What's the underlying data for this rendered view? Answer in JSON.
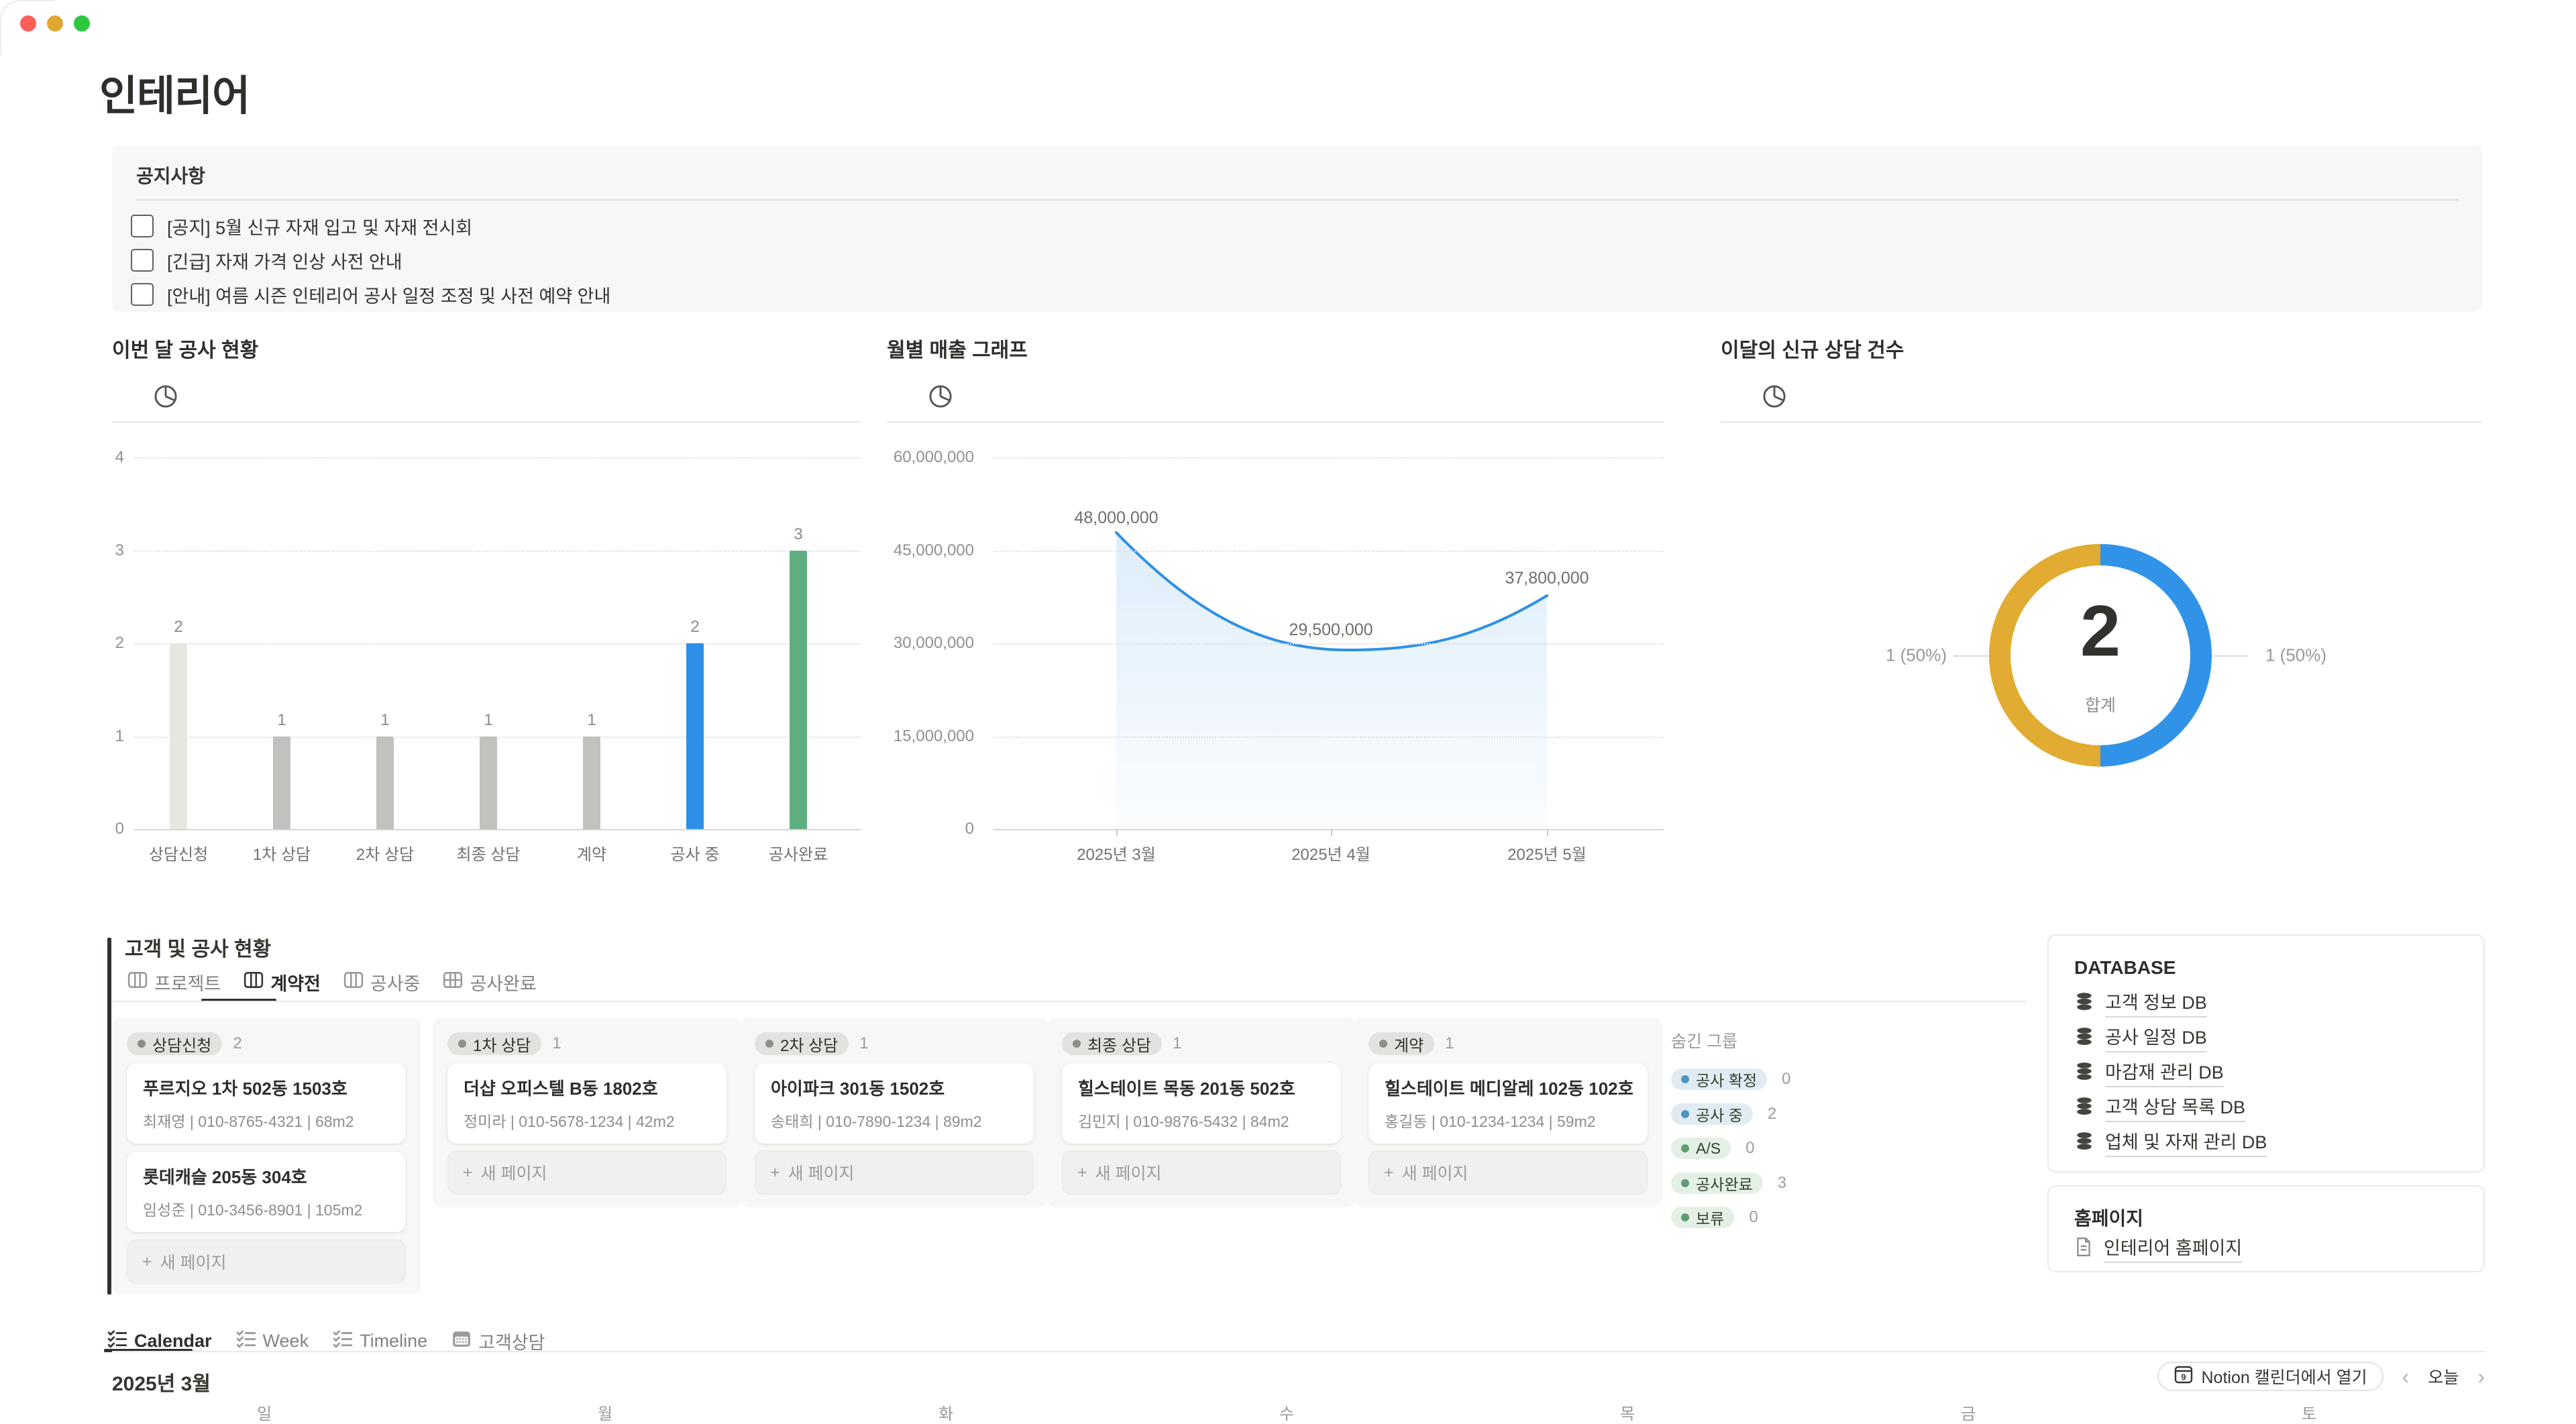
{
  "window": {
    "controls": [
      {
        "name": "close",
        "color": "#fb5f57"
      },
      {
        "name": "minimize",
        "color": "#e0a831"
      },
      {
        "name": "zoom",
        "color": "#2bc840"
      }
    ]
  },
  "page": {
    "title": "인테리어"
  },
  "notice": {
    "title": "공지사항",
    "items": [
      "[공지] 5월 신규 자재 입고 및 자재 전시회",
      "[긴급] 자재 가격 인상 사전 안내",
      "[안내] 여름 시즌 인테리어 공사 일정 조정 및 사전 예약 안내"
    ]
  },
  "chart_data": [
    {
      "type": "bar",
      "title": "이번 달 공사 현황",
      "categories": [
        "상담신청",
        "1차 상담",
        "2차 상담",
        "최종 상담",
        "계약",
        "공사 중",
        "공사완료"
      ],
      "values": [
        2,
        1,
        1,
        1,
        1,
        2,
        3
      ],
      "bar_colors": [
        "#e7e6e1",
        "#c2c1bd",
        "#c2c1bd",
        "#c2c1bd",
        "#c2c1bd",
        "#2e8fe8",
        "#5fae7f"
      ],
      "yticks": [
        0,
        1,
        2,
        3,
        4
      ],
      "ylim": [
        0,
        4
      ],
      "grid": "dotted-horizontal",
      "xlabel": "",
      "ylabel": ""
    },
    {
      "type": "area",
      "title": "월별 매출 그래프",
      "x": [
        "2025년 3월",
        "2025년 4월",
        "2025년 5월"
      ],
      "values": [
        48000000,
        29500000,
        37800000
      ],
      "point_labels": [
        "48,000,000",
        "29,500,000",
        "37,800,000"
      ],
      "ytick_labels": [
        "60,000,000",
        "45,000,000",
        "30,000,000",
        "15,000,000",
        "0"
      ],
      "ylim": [
        0,
        60000000
      ],
      "line_color": "#2e90e5",
      "grid": "dotted-horizontal",
      "legend": "none"
    },
    {
      "type": "donut",
      "title": "이달의 신규 상담 건수",
      "total": 2,
      "total_label": "합계",
      "slices": [
        {
          "label": "1 (50%)",
          "value": 1,
          "color": "#e2ab32",
          "side": "left"
        },
        {
          "label": "1 (50%)",
          "value": 1,
          "color": "#3193e8",
          "side": "right"
        }
      ]
    }
  ],
  "kanban": {
    "title": "고객 및 공사 현황",
    "tabs": [
      {
        "label": "프로젝트",
        "icon": "board-icon",
        "active": false
      },
      {
        "label": "계약전",
        "icon": "board-icon",
        "active": true
      },
      {
        "label": "공사중",
        "icon": "board-icon",
        "active": false
      },
      {
        "label": "공사완료",
        "icon": "table-icon",
        "active": false
      }
    ],
    "new_page_label": "새 페이지",
    "columns": [
      {
        "name": "상담신청",
        "count": 2,
        "cards": [
          {
            "title": "푸르지오 1차 502동 1503호",
            "meta": "최재영 | 010-8765-4321 | 68m2"
          },
          {
            "title": "롯데캐슬 205동 304호",
            "meta": "임성준 | 010-3456-8901 | 105m2"
          }
        ]
      },
      {
        "name": "1차 상담",
        "count": 1,
        "cards": [
          {
            "title": "더샵 오피스텔 B동 1802호",
            "meta": "정미라 | 010-5678-1234 | 42m2"
          }
        ]
      },
      {
        "name": "2차 상담",
        "count": 1,
        "cards": [
          {
            "title": "아이파크 301동 1502호",
            "meta": "송태희 | 010-7890-1234 | 89m2"
          }
        ]
      },
      {
        "name": "최종 상담",
        "count": 1,
        "cards": [
          {
            "title": "힐스테이트 목동 201동 502호",
            "meta": "김민지 | 010-9876-5432 | 84m2"
          }
        ]
      },
      {
        "name": "계약",
        "count": 1,
        "cards": [
          {
            "title": "힐스테이트 메디알레 102동 102호",
            "meta": "홍길동 | 010-1234-1234 | 59m2"
          }
        ]
      }
    ],
    "hidden_groups": {
      "title": "숨긴 그룹",
      "items": [
        {
          "label": "공사 확정",
          "count": 0,
          "tone": "blue",
          "dot": "#4c95c4"
        },
        {
          "label": "공사 중",
          "count": 2,
          "tone": "blue",
          "dot": "#4c95c4"
        },
        {
          "label": "A/S",
          "count": 0,
          "tone": "green",
          "dot": "#5e9c72"
        },
        {
          "label": "공사완료",
          "count": 3,
          "tone": "green",
          "dot": "#5e9c72"
        },
        {
          "label": "보류",
          "count": 0,
          "tone": "green",
          "dot": "#5e9c72"
        }
      ]
    }
  },
  "database_panel": {
    "title": "DATABASE",
    "items": [
      "고객 정보 DB",
      "공사 일정 DB",
      "마감재 관리 DB",
      "고객 상담 목록 DB",
      "업체 및 자재 관리 DB"
    ]
  },
  "homepage_panel": {
    "title": "홈페이지",
    "items": [
      "인테리어 홈페이지"
    ]
  },
  "calendar": {
    "tabs": [
      {
        "label": "Calendar",
        "icon": "checklist-icon",
        "active": true
      },
      {
        "label": "Week",
        "icon": "checklist-icon",
        "active": false
      },
      {
        "label": "Timeline",
        "icon": "checklist-icon",
        "active": false
      },
      {
        "label": "고객상담",
        "icon": "calendar-icon",
        "active": false
      }
    ],
    "month_label": "2025년 3월",
    "open_button_label": "Notion 캘린더에서 열기",
    "today_label": "오늘",
    "day_headers": [
      "일",
      "월",
      "화",
      "수",
      "목",
      "금",
      "토"
    ]
  },
  "colors": {
    "accent_blue": "#2e8fe8",
    "accent_green": "#5fae7f",
    "accent_yellow": "#e2ab32",
    "panel_gray": "#f7f7f5",
    "text_dark": "#37352f",
    "text_gray": "#9b9a97"
  }
}
